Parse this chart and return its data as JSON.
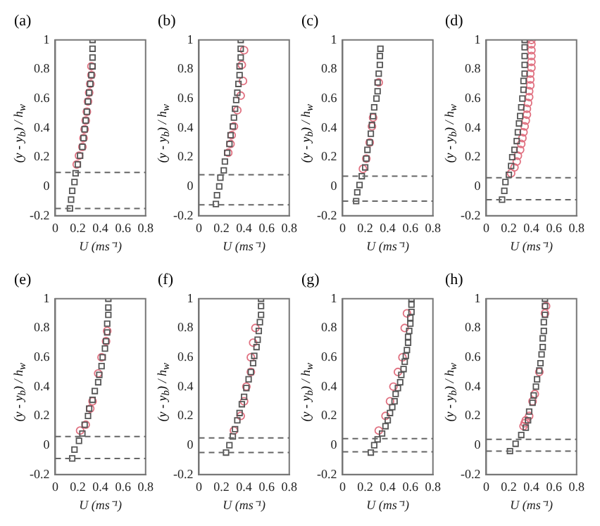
{
  "chart_data": [
    {
      "type": "scatter",
      "title": "(a)",
      "xlabel": "U (ms⁻¹)",
      "ylabel": "(y - y$_{b}$) / h$_{w}$",
      "xlim": [
        0,
        0.8
      ],
      "xticks": [
        0,
        0.2,
        0.4,
        0.6,
        0.8
      ],
      "ylim": [
        -0.2,
        1
      ],
      "yticks": [
        -0.2,
        0,
        0.2,
        0.4,
        0.6,
        0.8,
        1
      ],
      "grid": false,
      "legend": false,
      "series": [
        {
          "color": "#555555",
          "marker": "square",
          "x": [
            0.33,
            0.33,
            0.33,
            0.33,
            0.32,
            0.31,
            0.3,
            0.29,
            0.28,
            0.27,
            0.26,
            0.25,
            0.24,
            0.22,
            0.2,
            0.18,
            0.17,
            0.15,
            0.14,
            0.13
          ],
          "values": [
            1,
            0.94,
            0.88,
            0.82,
            0.76,
            0.7,
            0.64,
            0.58,
            0.51,
            0.45,
            0.39,
            0.33,
            0.27,
            0.21,
            0.15,
            0.09,
            0.03,
            -0.03,
            -0.09,
            -0.15
          ]
        },
        {
          "color": "#e07080",
          "marker": "circle",
          "x": [
            0.32,
            0.32,
            0.31,
            0.3,
            0.29,
            0.28,
            0.27,
            0.26,
            0.25,
            0.24,
            0.21,
            0.19
          ],
          "values": [
            0.82,
            0.76,
            0.7,
            0.64,
            0.58,
            0.51,
            0.45,
            0.39,
            0.33,
            0.27,
            0.21,
            0.15
          ]
        }
      ],
      "ref_lines": [
        {
          "axis": "y",
          "value": 0.095,
          "color": "#666666",
          "line_style": "dashed"
        },
        {
          "axis": "y",
          "value": -0.15,
          "color": "#666666",
          "line_style": "dashed"
        }
      ]
    },
    {
      "type": "scatter",
      "title": "(b)",
      "xlabel": "U (ms⁻¹)",
      "ylabel": "(y - y$_{b}$) / h$_{w}$",
      "xlim": [
        0,
        0.8
      ],
      "xticks": [
        0,
        0.2,
        0.4,
        0.6,
        0.8
      ],
      "ylim": [
        -0.2,
        1
      ],
      "yticks": [
        -0.2,
        0,
        0.2,
        0.4,
        0.6,
        0.8,
        1
      ],
      "grid": false,
      "legend": false,
      "series": [
        {
          "color": "#555555",
          "marker": "square",
          "x": [
            0.37,
            0.37,
            0.37,
            0.36,
            0.36,
            0.35,
            0.34,
            0.33,
            0.32,
            0.31,
            0.3,
            0.28,
            0.27,
            0.25,
            0.23,
            0.22,
            0.19,
            0.18,
            0.16,
            0.15
          ],
          "values": [
            1,
            0.94,
            0.88,
            0.82,
            0.76,
            0.7,
            0.64,
            0.59,
            0.53,
            0.47,
            0.41,
            0.35,
            0.29,
            0.23,
            0.17,
            0.11,
            0.06,
            0.0,
            -0.06,
            -0.12
          ]
        },
        {
          "color": "#e07080",
          "marker": "circle",
          "x": [
            0.4,
            0.38,
            0.39,
            0.37,
            0.34,
            0.31,
            0.29,
            0.28,
            0.26
          ],
          "values": [
            0.93,
            0.83,
            0.72,
            0.62,
            0.52,
            0.41,
            0.35,
            0.29,
            0.23
          ]
        }
      ],
      "ref_lines": [
        {
          "axis": "y",
          "value": 0.08,
          "color": "#666666",
          "line_style": "dashed"
        },
        {
          "axis": "y",
          "value": -0.125,
          "color": "#666666",
          "line_style": "dashed"
        }
      ]
    },
    {
      "type": "scatter",
      "title": "(c)",
      "xlabel": "U (ms⁻¹)",
      "ylabel": "(y - y$_{b}$) / h$_{w}$",
      "xlim": [
        0,
        0.8
      ],
      "xticks": [
        0,
        0.2,
        0.4,
        0.6,
        0.8
      ],
      "ylim": [
        -0.2,
        1
      ],
      "yticks": [
        -0.2,
        0,
        0.2,
        0.4,
        0.6,
        0.8,
        1
      ],
      "grid": false,
      "legend": false,
      "series": [
        {
          "color": "#555555",
          "marker": "square",
          "x": [
            0.335,
            0.33,
            0.33,
            0.32,
            0.31,
            0.31,
            0.3,
            0.28,
            0.27,
            0.26,
            0.25,
            0.24,
            0.22,
            0.21,
            0.2,
            0.17,
            0.15,
            0.13,
            0.12
          ],
          "values": [
            0.94,
            0.89,
            0.83,
            0.77,
            0.71,
            0.65,
            0.6,
            0.54,
            0.48,
            0.42,
            0.36,
            0.3,
            0.25,
            0.19,
            0.13,
            0.07,
            0.01,
            -0.04,
            -0.1
          ]
        },
        {
          "color": "#e07080",
          "marker": "circle",
          "x": [
            0.32,
            0.27,
            0.26,
            0.24,
            0.21,
            0.18
          ],
          "values": [
            0.71,
            0.47,
            0.41,
            0.3,
            0.19,
            0.12
          ]
        }
      ],
      "ref_lines": [
        {
          "axis": "y",
          "value": 0.07,
          "color": "#666666",
          "line_style": "dashed"
        },
        {
          "axis": "y",
          "value": -0.1,
          "color": "#666666",
          "line_style": "dashed"
        }
      ]
    },
    {
      "type": "scatter",
      "title": "(d)",
      "xlabel": "U (ms⁻¹)",
      "ylabel": "(y - y$_{b}$) / h$_{w}$",
      "xlim": [
        0,
        0.8
      ],
      "xticks": [
        0,
        0.2,
        0.4,
        0.6,
        0.8
      ],
      "ylim": [
        -0.2,
        1
      ],
      "yticks": [
        -0.2,
        0,
        0.2,
        0.4,
        0.6,
        0.8,
        1
      ],
      "grid": false,
      "legend": false,
      "series": [
        {
          "color": "#555555",
          "marker": "square",
          "x": [
            0.34,
            0.34,
            0.34,
            0.34,
            0.34,
            0.33,
            0.33,
            0.32,
            0.31,
            0.3,
            0.29,
            0.28,
            0.27,
            0.25,
            0.23,
            0.22,
            0.2,
            0.17,
            0.16,
            0.14
          ],
          "values": [
            1,
            0.95,
            0.89,
            0.83,
            0.77,
            0.72,
            0.66,
            0.6,
            0.54,
            0.48,
            0.43,
            0.37,
            0.31,
            0.25,
            0.2,
            0.14,
            0.08,
            0.03,
            -0.03,
            -0.09
          ]
        },
        {
          "color": "#e07080",
          "marker": "circle",
          "x": [
            0.4,
            0.4,
            0.4,
            0.4,
            0.4,
            0.4,
            0.39,
            0.39,
            0.39,
            0.38,
            0.38,
            0.37,
            0.36,
            0.36,
            0.35,
            0.34,
            0.33,
            0.32,
            0.31,
            0.3,
            0.28,
            0.27,
            0.25,
            0.22
          ],
          "values": [
            1,
            0.97,
            0.93,
            0.89,
            0.85,
            0.81,
            0.77,
            0.73,
            0.69,
            0.65,
            0.61,
            0.57,
            0.53,
            0.49,
            0.45,
            0.41,
            0.37,
            0.33,
            0.29,
            0.25,
            0.21,
            0.17,
            0.13,
            0.09
          ]
        }
      ],
      "ref_lines": [
        {
          "axis": "y",
          "value": 0.06,
          "color": "#666666",
          "line_style": "dashed"
        },
        {
          "axis": "y",
          "value": -0.09,
          "color": "#666666",
          "line_style": "dashed"
        }
      ]
    },
    {
      "type": "scatter",
      "title": "(e)",
      "xlabel": "U (ms⁻¹)",
      "ylabel": "(y - y$_{b}$) / h$_{w}$",
      "xlim": [
        0,
        0.8
      ],
      "xticks": [
        0,
        0.2,
        0.4,
        0.6,
        0.8
      ],
      "ylim": [
        -0.2,
        1
      ],
      "yticks": [
        -0.2,
        0,
        0.2,
        0.4,
        0.6,
        0.8,
        1
      ],
      "grid": false,
      "legend": false,
      "series": [
        {
          "color": "#555555",
          "marker": "square",
          "x": [
            0.47,
            0.47,
            0.47,
            0.46,
            0.46,
            0.45,
            0.44,
            0.42,
            0.41,
            0.39,
            0.38,
            0.35,
            0.33,
            0.3,
            0.29,
            0.26,
            0.24,
            0.21,
            0.17,
            0.15
          ],
          "values": [
            1,
            0.94,
            0.89,
            0.83,
            0.77,
            0.71,
            0.66,
            0.6,
            0.54,
            0.48,
            0.43,
            0.37,
            0.31,
            0.25,
            0.2,
            0.14,
            0.08,
            0.03,
            -0.03,
            -0.09
          ]
        },
        {
          "color": "#e07080",
          "marker": "circle",
          "x": [
            0.46,
            0.45,
            0.41,
            0.38,
            0.33,
            0.31,
            0.27,
            0.22
          ],
          "values": [
            0.78,
            0.71,
            0.6,
            0.49,
            0.3,
            0.25,
            0.14,
            0.1
          ]
        }
      ],
      "ref_lines": [
        {
          "axis": "y",
          "value": 0.06,
          "color": "#666666",
          "line_style": "dashed"
        },
        {
          "axis": "y",
          "value": -0.09,
          "color": "#666666",
          "line_style": "dashed"
        }
      ]
    },
    {
      "type": "scatter",
      "title": "(f)",
      "xlabel": "U (ms⁻¹)",
      "ylabel": "(y - y$_{b}$) / h$_{w}$",
      "xlim": [
        0,
        0.8
      ],
      "xticks": [
        0,
        0.2,
        0.4,
        0.6,
        0.8
      ],
      "ylim": [
        -0.2,
        1
      ],
      "yticks": [
        -0.2,
        0,
        0.2,
        0.4,
        0.6,
        0.8,
        1
      ],
      "grid": false,
      "legend": false,
      "series": [
        {
          "color": "#555555",
          "marker": "square",
          "x": [
            0.55,
            0.55,
            0.55,
            0.54,
            0.53,
            0.52,
            0.51,
            0.49,
            0.48,
            0.46,
            0.44,
            0.42,
            0.4,
            0.38,
            0.36,
            0.34,
            0.32,
            0.3,
            0.27,
            0.24
          ],
          "values": [
            1,
            0.95,
            0.89,
            0.84,
            0.78,
            0.72,
            0.67,
            0.61,
            0.56,
            0.5,
            0.45,
            0.39,
            0.33,
            0.28,
            0.22,
            0.17,
            0.11,
            0.06,
            0.0,
            -0.05
          ]
        },
        {
          "color": "#e07080",
          "marker": "circle",
          "x": [
            0.5,
            0.48,
            0.46,
            0.46,
            0.42,
            0.4,
            0.37,
            0.31
          ],
          "values": [
            0.8,
            0.7,
            0.6,
            0.5,
            0.4,
            0.3,
            0.2,
            0.1
          ]
        }
      ],
      "ref_lines": [
        {
          "axis": "y",
          "value": 0.05,
          "color": "#666666",
          "line_style": "dashed"
        },
        {
          "axis": "y",
          "value": -0.05,
          "color": "#666666",
          "line_style": "dashed"
        }
      ]
    },
    {
      "type": "scatter",
      "title": "(g)",
      "xlabel": "U (ms⁻¹)",
      "ylabel": "(y - y$_{b}$) / h$_{w}$",
      "xlim": [
        0,
        0.8
      ],
      "xticks": [
        0,
        0.2,
        0.4,
        0.6,
        0.8
      ],
      "ylim": [
        -0.2,
        1
      ],
      "yticks": [
        -0.2,
        0,
        0.2,
        0.4,
        0.6,
        0.8,
        1
      ],
      "grid": false,
      "legend": false,
      "series": [
        {
          "color": "#555555",
          "marker": "square",
          "x": [
            0.61,
            0.61,
            0.61,
            0.6,
            0.6,
            0.59,
            0.58,
            0.58,
            0.57,
            0.56,
            0.55,
            0.54,
            0.52,
            0.51,
            0.49,
            0.47,
            0.46,
            0.44,
            0.42,
            0.4,
            0.38,
            0.35,
            0.31,
            0.28,
            0.25
          ],
          "values": [
            1,
            0.96,
            0.91,
            0.87,
            0.83,
            0.78,
            0.74,
            0.7,
            0.65,
            0.61,
            0.57,
            0.52,
            0.48,
            0.43,
            0.39,
            0.35,
            0.3,
            0.26,
            0.22,
            0.17,
            0.13,
            0.08,
            0.04,
            0.0,
            -0.05
          ]
        },
        {
          "color": "#e07080",
          "marker": "circle",
          "x": [
            0.57,
            0.55,
            0.53,
            0.49,
            0.45,
            0.42,
            0.38,
            0.32
          ],
          "values": [
            0.9,
            0.8,
            0.6,
            0.5,
            0.4,
            0.3,
            0.2,
            0.1
          ]
        }
      ],
      "ref_lines": [
        {
          "axis": "y",
          "value": 0.045,
          "color": "#666666",
          "line_style": "dashed"
        },
        {
          "axis": "y",
          "value": -0.045,
          "color": "#666666",
          "line_style": "dashed"
        }
      ]
    },
    {
      "type": "scatter",
      "title": "(h)",
      "xlabel": "U (ms⁻¹)",
      "ylabel": "(y - y$_{b}$) / h$_{w}$",
      "xlim": [
        0,
        0.8
      ],
      "xticks": [
        0,
        0.2,
        0.4,
        0.6,
        0.8
      ],
      "ylim": [
        -0.2,
        1
      ],
      "yticks": [
        -0.2,
        0,
        0.2,
        0.4,
        0.6,
        0.8,
        1
      ],
      "grid": false,
      "legend": false,
      "series": [
        {
          "color": "#555555",
          "marker": "square",
          "x": [
            0.52,
            0.52,
            0.52,
            0.51,
            0.51,
            0.5,
            0.5,
            0.49,
            0.48,
            0.47,
            0.45,
            0.44,
            0.42,
            0.41,
            0.38,
            0.37,
            0.35,
            0.31,
            0.26,
            0.21
          ],
          "values": [
            1,
            0.95,
            0.89,
            0.84,
            0.78,
            0.73,
            0.67,
            0.62,
            0.56,
            0.51,
            0.45,
            0.4,
            0.34,
            0.29,
            0.23,
            0.17,
            0.12,
            0.07,
            0.01,
            -0.04
          ]
        },
        {
          "color": "#e07080",
          "marker": "circle",
          "x": [
            0.53,
            0.52,
            0.47,
            0.43,
            0.41,
            0.38,
            0.35,
            0.34,
            0.33
          ],
          "values": [
            0.95,
            0.9,
            0.5,
            0.35,
            0.3,
            0.2,
            0.17,
            0.15,
            0.13
          ]
        }
      ],
      "ref_lines": [
        {
          "axis": "y",
          "value": 0.04,
          "color": "#666666",
          "line_style": "dashed"
        },
        {
          "axis": "y",
          "value": -0.04,
          "color": "#666666",
          "line_style": "dashed"
        }
      ]
    }
  ]
}
